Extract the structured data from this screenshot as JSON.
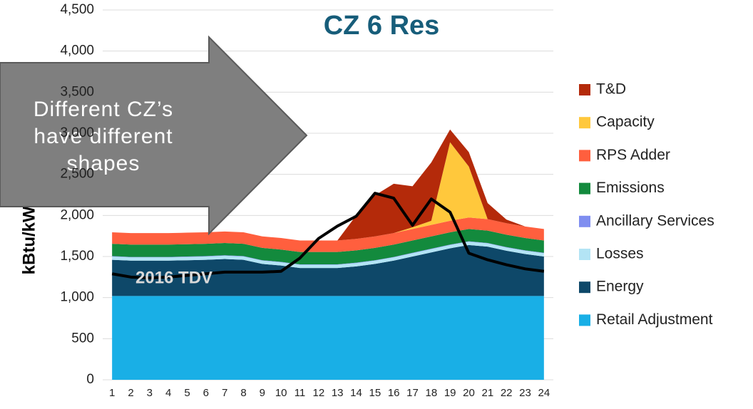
{
  "chart_data": {
    "type": "stacked_area",
    "title": "CZ 6 Res",
    "y_label": "kBtu/kWh",
    "categories": [
      1,
      2,
      3,
      4,
      5,
      6,
      7,
      8,
      9,
      10,
      11,
      12,
      13,
      14,
      15,
      16,
      17,
      18,
      19,
      20,
      21,
      22,
      23,
      24
    ],
    "ylim": [
      0,
      4500
    ],
    "yticks": [
      0,
      500,
      {
        "value": 1000,
        "label": "1,000"
      },
      {
        "value": 1500,
        "label": "1,500"
      },
      {
        "value": 2000,
        "label": "2,000"
      },
      {
        "value": 2500,
        "label": "2,500"
      },
      {
        "value": 3000,
        "label": "3,000"
      },
      {
        "value": 3500,
        "label": "3,500"
      },
      {
        "value": 4000,
        "label": "4,000"
      },
      {
        "value": 4500,
        "label": "4,500"
      }
    ],
    "grid": true,
    "series": [
      {
        "name": "Retail Adjustment",
        "color": "#19afe6",
        "values": [
          1020,
          1020,
          1020,
          1020,
          1020,
          1020,
          1020,
          1020,
          1020,
          1020,
          1020,
          1020,
          1020,
          1020,
          1020,
          1020,
          1020,
          1020,
          1020,
          1020,
          1020,
          1020,
          1020,
          1020
        ]
      },
      {
        "name": "Energy",
        "color": "#0e4869",
        "values": [
          440,
          430,
          430,
          430,
          435,
          440,
          450,
          440,
          390,
          370,
          340,
          340,
          340,
          360,
          390,
          430,
          480,
          530,
          580,
          620,
          600,
          550,
          510,
          480
        ]
      },
      {
        "name": "Losses",
        "color": "#b3e4f5",
        "values": [
          40,
          40,
          40,
          40,
          40,
          40,
          40,
          40,
          40,
          40,
          40,
          40,
          40,
          40,
          40,
          40,
          40,
          40,
          40,
          40,
          40,
          40,
          40,
          40
        ]
      },
      {
        "name": "Ancillary Services",
        "color": "#7f8ef0",
        "values": [
          5,
          5,
          5,
          5,
          5,
          5,
          5,
          5,
          5,
          5,
          5,
          5,
          5,
          5,
          5,
          5,
          5,
          5,
          5,
          5,
          5,
          5,
          5,
          5
        ]
      },
      {
        "name": "Emissions",
        "color": "#138a3d",
        "values": [
          150,
          150,
          150,
          150,
          150,
          150,
          150,
          150,
          150,
          150,
          150,
          150,
          150,
          150,
          150,
          150,
          150,
          150,
          150,
          150,
          150,
          150,
          150,
          150
        ]
      },
      {
        "name": "RPS Adder",
        "color": "#ff5f3e",
        "values": [
          140,
          140,
          140,
          140,
          140,
          140,
          140,
          140,
          140,
          140,
          140,
          140,
          140,
          140,
          140,
          140,
          140,
          140,
          140,
          140,
          140,
          140,
          140,
          140
        ]
      },
      {
        "name": "Capacity",
        "color": "#ffc83c",
        "values": [
          0,
          0,
          0,
          0,
          0,
          0,
          0,
          0,
          0,
          0,
          0,
          0,
          0,
          0,
          0,
          0,
          20,
          50,
          955,
          620,
          0,
          0,
          0,
          0
        ]
      },
      {
        "name": "T&D",
        "color": "#b42a0a",
        "values": [
          0,
          0,
          0,
          0,
          0,
          0,
          0,
          0,
          0,
          0,
          0,
          0,
          0,
          285,
          500,
          600,
          500,
          710,
          155,
          175,
          195,
          45,
          0,
          0
        ]
      }
    ],
    "lines": [
      {
        "name": "2016 TDV",
        "color": "#000000",
        "values": [
          1290,
          1250,
          1240,
          1250,
          1270,
          1290,
          1310,
          1310,
          1310,
          1320,
          1480,
          1720,
          1870,
          1990,
          2270,
          2210,
          1880,
          2200,
          2040,
          1540,
          1460,
          1400,
          1350,
          1320
        ]
      }
    ],
    "annotation": [
      "Different CZ’s",
      "have different",
      "shapes"
    ]
  }
}
